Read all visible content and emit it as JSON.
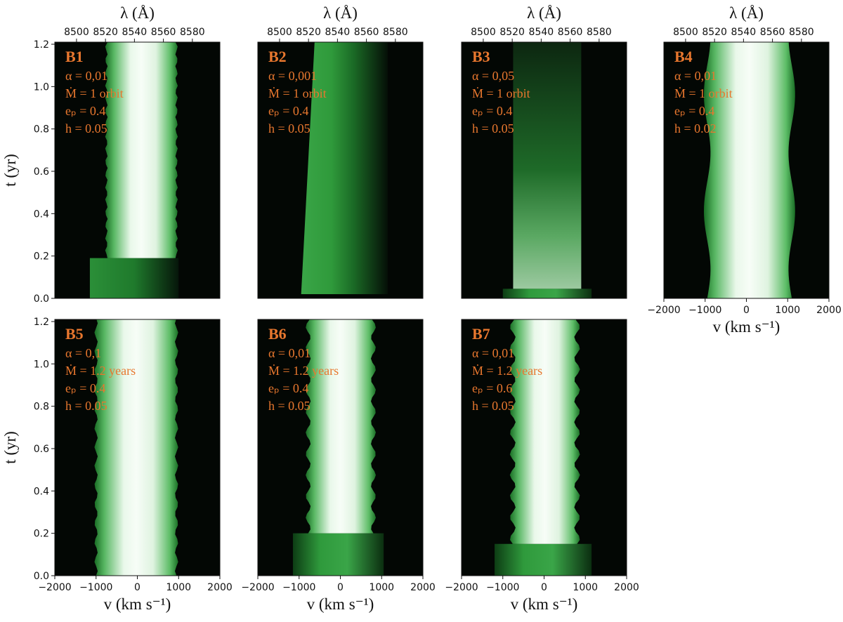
{
  "chart_data": [
    {
      "type": "heatmap",
      "panel": "B1",
      "annotations": [
        "α = 0,01",
        "Ṁ = 1 orbit",
        "eₚ = 0.4",
        "h = 0.05"
      ],
      "xlim": [
        -2000,
        2000
      ],
      "ylim": [
        0,
        1.21
      ],
      "ylabel": "t (yr)",
      "yticks": [
        {
          "value": 0,
          "label": "0.0"
        },
        0.2,
        0.4,
        0.6,
        0.8,
        {
          "value": 1,
          "label": "1.0"
        },
        1.2
      ],
      "x2label": "λ (Å)",
      "x2lim": [
        8485,
        8599
      ],
      "x2ticks": [
        8500,
        8520,
        8540,
        8560,
        8580
      ]
    },
    {
      "type": "heatmap",
      "panel": "B2",
      "annotations": [
        "α = 0,001",
        "Ṁ = 1 orbit",
        "eₚ = 0.4",
        "h = 0.05"
      ],
      "xlim": [
        -2000,
        2000
      ],
      "ylim": [
        0,
        1.21
      ],
      "x2label": "λ (Å)",
      "x2lim": [
        8485,
        8599
      ],
      "x2ticks": [
        8500,
        8520,
        8540,
        8560,
        8580
      ]
    },
    {
      "type": "heatmap",
      "panel": "B3",
      "annotations": [
        "α = 0,05",
        "Ṁ = 1 orbit",
        "eₚ = 0.4",
        "h = 0.05"
      ],
      "xlim": [
        -2000,
        2000
      ],
      "ylim": [
        0,
        1.21
      ],
      "x2label": "λ (Å)",
      "x2lim": [
        8485,
        8599
      ],
      "x2ticks": [
        8500,
        8520,
        8540,
        8560,
        8580
      ]
    },
    {
      "type": "heatmap",
      "panel": "B4",
      "annotations": [
        "α = 0,01",
        "Ṁ = 1 orbit",
        "eₚ = 0.4",
        "h = 0.02"
      ],
      "xlim": [
        -2000,
        2000
      ],
      "ylim": [
        0,
        1.21
      ],
      "xlabel": "v (km s⁻¹)",
      "xticks": [
        {
          "value": -2000,
          "label": "−2000"
        },
        {
          "value": -1000,
          "label": "−1000"
        },
        0,
        1000,
        2000
      ],
      "x2label": "λ (Å)",
      "x2lim": [
        8485,
        8599
      ],
      "x2ticks": [
        8500,
        8520,
        8540,
        8560,
        8580
      ]
    },
    {
      "type": "heatmap",
      "panel": "B5",
      "annotations": [
        "α = 0,1",
        "Ṁ = 1.2 years",
        "eₚ = 0.4",
        "h = 0.05"
      ],
      "xlim": [
        -2000,
        2000
      ],
      "ylim": [
        0,
        1.21
      ],
      "ylabel": "t (yr)",
      "xlabel": "v (km s⁻¹)",
      "yticks": [
        {
          "value": 0,
          "label": "0.0"
        },
        0.2,
        0.4,
        0.6,
        0.8,
        {
          "value": 1,
          "label": "1.0"
        },
        1.2
      ],
      "xticks": [
        {
          "value": -2000,
          "label": "−2000"
        },
        {
          "value": -1000,
          "label": "−1000"
        },
        0,
        1000,
        2000
      ]
    },
    {
      "type": "heatmap",
      "panel": "B6",
      "annotations": [
        "α = 0,01",
        "Ṁ = 1.2 years",
        "eₚ = 0.4",
        "h = 0.05"
      ],
      "xlim": [
        -2000,
        2000
      ],
      "ylim": [
        0,
        1.21
      ],
      "xlabel": "v (km s⁻¹)",
      "xticks": [
        {
          "value": -2000,
          "label": "−2000"
        },
        {
          "value": -1000,
          "label": "−1000"
        },
        0,
        1000,
        2000
      ]
    },
    {
      "type": "heatmap",
      "panel": "B7",
      "annotations": [
        "α = 0,01",
        "Ṁ = 1.2 years",
        "eₚ = 0.6",
        "h = 0.05"
      ],
      "xlim": [
        -2000,
        2000
      ],
      "ylim": [
        0,
        1.21
      ],
      "xlabel": "v (km s⁻¹)",
      "xticks": [
        {
          "value": -2000,
          "label": "−2000"
        },
        {
          "value": -1000,
          "label": "−1000"
        },
        0,
        1000,
        2000
      ]
    }
  ]
}
